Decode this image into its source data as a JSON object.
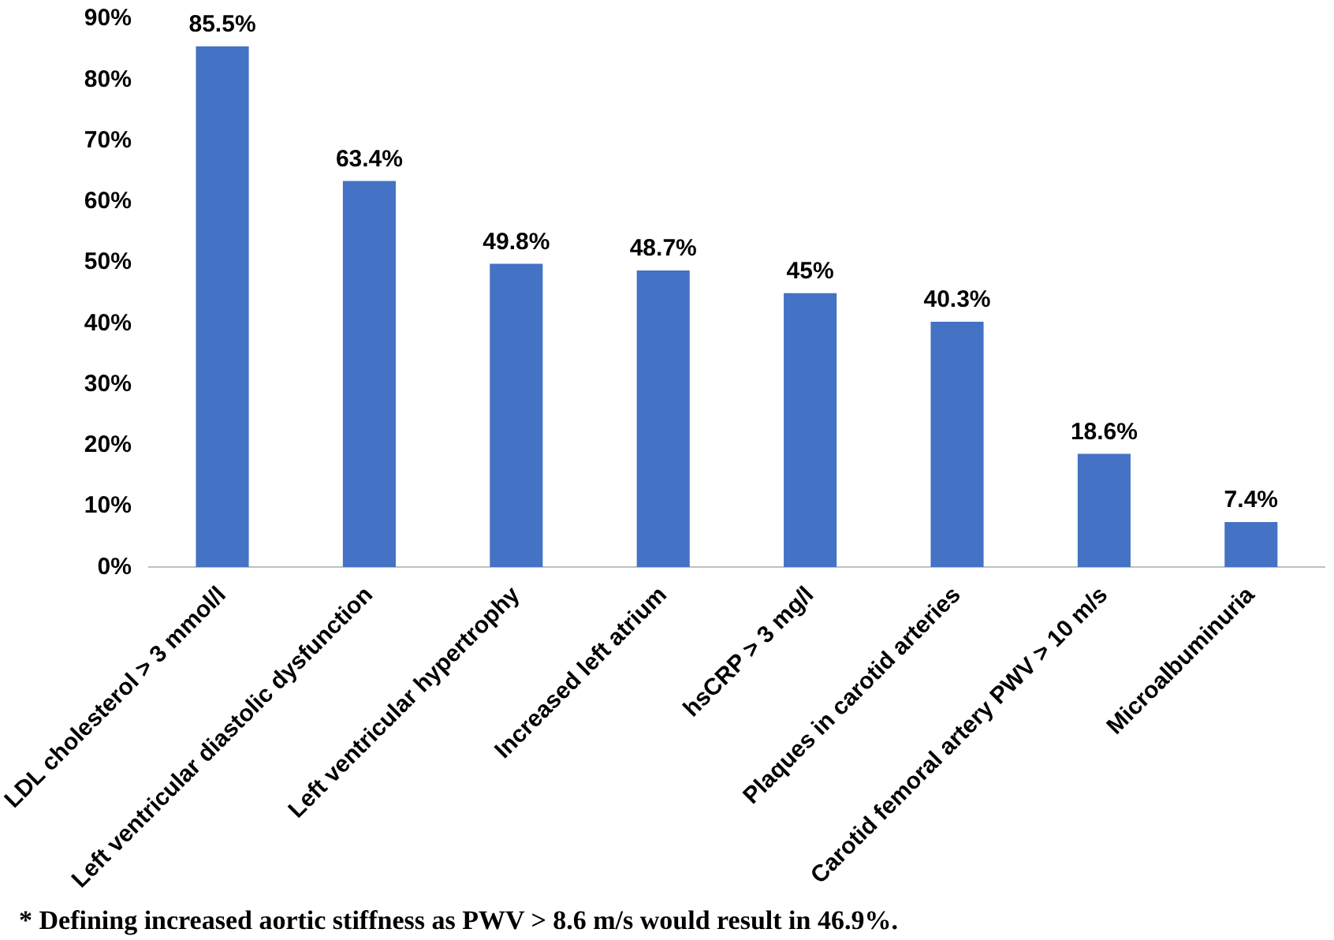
{
  "chart_data": {
    "type": "bar",
    "categories": [
      "LDL cholesterol > 3 mmol/l",
      "Left ventricular diastolic dysfunction",
      "Left ventricular hypertrophy",
      "Increased left atrium",
      "hsCRP > 3 mg/l",
      "Plaques in carotid arteries",
      "Carotid femoral artery PWV > 10 m/s",
      "Microalbuminuria"
    ],
    "values": [
      85.5,
      63.4,
      49.8,
      48.7,
      45,
      40.3,
      18.6,
      7.4
    ],
    "value_labels": [
      "85.5%",
      "63.4%",
      "49.8%",
      "48.7%",
      "45%",
      "40.3%",
      "18.6%",
      "7.4%"
    ],
    "color": "#4472c4",
    "ylim": [
      0,
      90
    ],
    "yticks": [
      {
        "value": 0,
        "label": "0%"
      },
      {
        "value": 10,
        "label": "10%"
      },
      {
        "value": 20,
        "label": "20%"
      },
      {
        "value": 30,
        "label": "30%"
      },
      {
        "value": 40,
        "label": "40%"
      },
      {
        "value": 50,
        "label": "50%"
      },
      {
        "value": 60,
        "label": "60%"
      },
      {
        "value": 70,
        "label": "70%"
      },
      {
        "value": 80,
        "label": "80%"
      },
      {
        "value": 90,
        "label": "90%"
      }
    ],
    "grid": false,
    "legend": false,
    "annotations": [
      "* Defining increased aortic stiffness as PWV > 8.6 m/s would result in 46.9%."
    ]
  }
}
